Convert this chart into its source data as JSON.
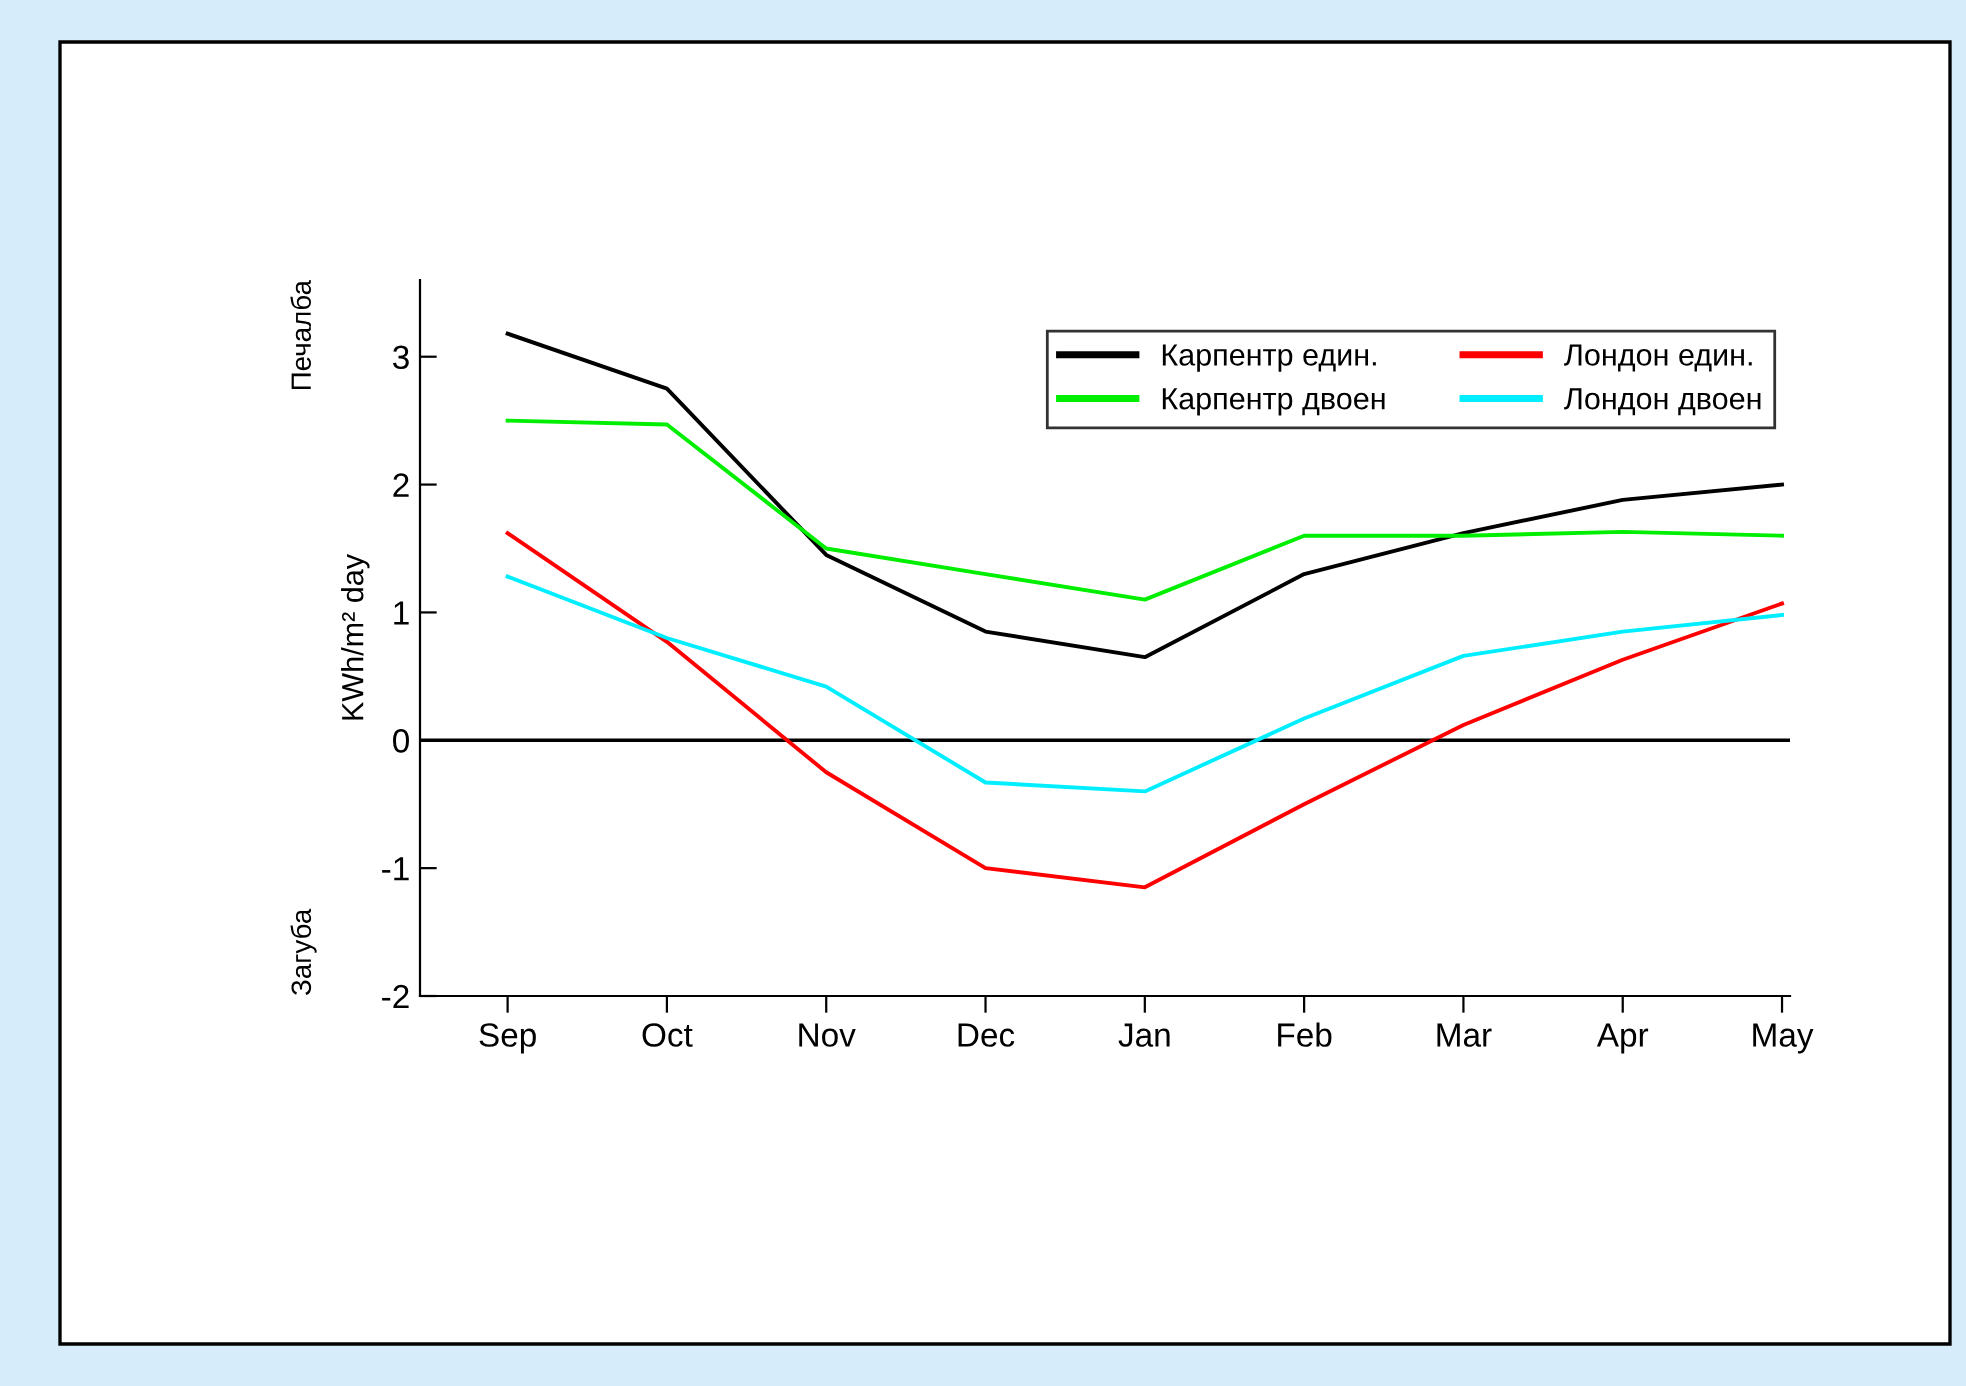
{
  "chart_data": {
    "type": "line",
    "ylabel": "KWh/m² day",
    "categories": [
      "Sep",
      "Oct",
      "Nov",
      "Dec",
      "Jan",
      "Feb",
      "Mar",
      "Apr",
      "May"
    ],
    "series": [
      {
        "name": "Карпентр един.",
        "color": "#000000",
        "values": [
          3.18,
          2.75,
          1.45,
          0.85,
          0.65,
          1.3,
          1.62,
          1.88,
          2.0
        ]
      },
      {
        "name": "Карпентр двоен",
        "color": "#00ee00",
        "values": [
          2.5,
          2.47,
          1.5,
          1.3,
          1.1,
          1.6,
          1.6,
          1.63,
          1.6
        ]
      },
      {
        "name": "Лондон един.",
        "color": "#ff0000",
        "values": [
          1.62,
          0.77,
          -0.25,
          -1.0,
          -1.15,
          -0.5,
          0.12,
          0.63,
          1.07
        ]
      },
      {
        "name": "Лондон двоен",
        "color": "#00eeff",
        "values": [
          1.28,
          0.8,
          0.42,
          -0.33,
          -0.4,
          0.17,
          0.66,
          0.85,
          0.98
        ]
      }
    ],
    "ylim": [
      -2,
      3.6
    ],
    "yticks": [
      -2,
      -1,
      0,
      1,
      2,
      3
    ],
    "ref_lines": [
      {
        "axis": "y",
        "value": 0,
        "color": "#000000"
      }
    ],
    "annotations": [
      "Печалба",
      "Загуба"
    ],
    "legend": "top right",
    "grid": false,
    "marker": "none",
    "line_style": "solid"
  }
}
